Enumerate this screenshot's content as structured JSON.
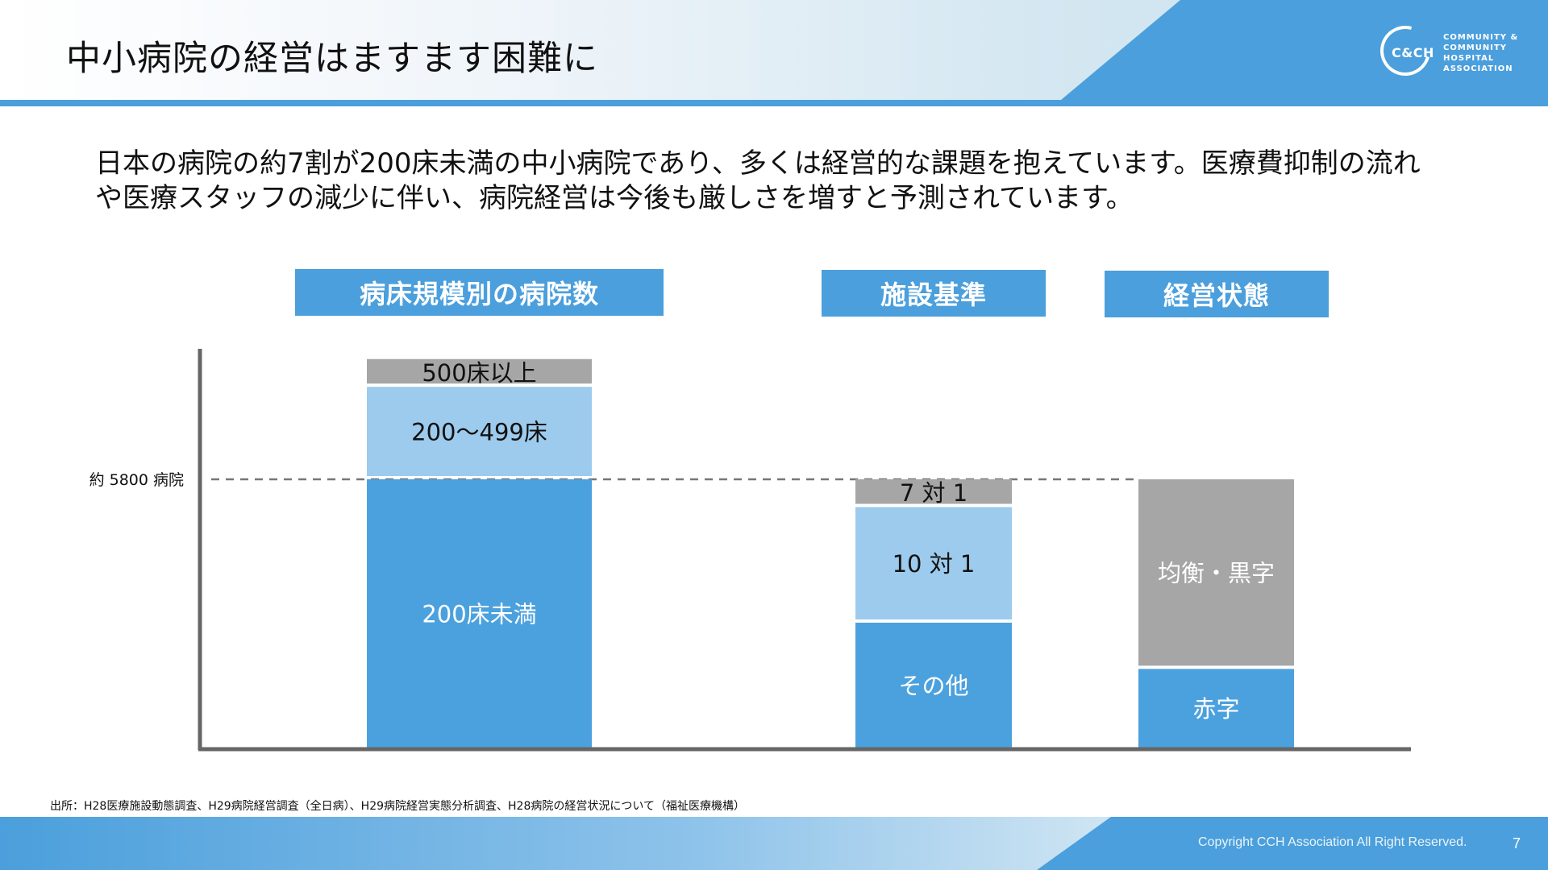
{
  "title": "中小病院の経営はますます困難に",
  "logo": {
    "abbr": "C&CH",
    "lines": [
      "COMMUNITY &",
      "COMMUNITY",
      "HOSPITAL",
      "ASSOCIATION"
    ]
  },
  "intro": {
    "line1": "日本の病院の約7割が200床未満の中小病院であり、多くは経営的な課題を抱えています。医療費抑制の流れ",
    "line2": "や医療スタッフの減少に伴い、病院経営は今後も厳しさを増すと予測されています。"
  },
  "categories": {
    "beds": "病床規模別の病院数",
    "standards": "施設基準",
    "management": "経営状態"
  },
  "chart_data": {
    "type": "bar",
    "stacked": true,
    "reference_line": {
      "label": "約 5800 病院",
      "value": 5800
    },
    "bars": [
      {
        "category": "病床規模別の病院数",
        "segments": [
          {
            "label": "200床未満",
            "value": 5800,
            "color": "#4ba1de"
          },
          {
            "label": "200〜499床",
            "value": 2000,
            "color": "#9dcbed"
          },
          {
            "label": "500床以上",
            "value": 600,
            "color": "#a6a6a6"
          }
        ]
      },
      {
        "category": "施設基準",
        "segments": [
          {
            "label": "その他",
            "value": 2700,
            "color": "#4ba1de"
          },
          {
            "label": "10 対 1",
            "value": 2500,
            "color": "#9dcbed"
          },
          {
            "label": "7 対 1",
            "value": 600,
            "color": "#a6a6a6"
          }
        ]
      },
      {
        "category": "経営状態",
        "segments": [
          {
            "label": "赤字",
            "value": 1700,
            "color": "#4ba1de"
          },
          {
            "label": "均衡・黒字",
            "value": 4100,
            "color": "#a6a6a6"
          }
        ]
      }
    ]
  },
  "source": "出所：H28医療施設動態調査、H29病院経営調査（全日病）、H29病院経営実態分析調査、H28病院の経営状況について（福祉医療機構）",
  "copyright": "Copyright CCH Association All Right Reserved.",
  "page_number": "7",
  "colors": {
    "accent": "#4b9fdc",
    "light": "#9dcbed",
    "gray": "#a6a6a6",
    "axis": "#666666"
  }
}
